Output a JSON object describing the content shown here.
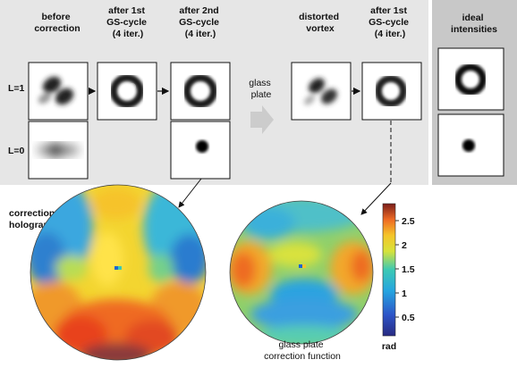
{
  "headers": {
    "before": [
      "before",
      "correction"
    ],
    "after1": [
      "after 1st",
      "GS-cycle",
      "(4 iter.)"
    ],
    "after2": [
      "after 2nd",
      "GS-cycle",
      "(4 iter.)"
    ],
    "distorted": [
      "distorted",
      "vortex"
    ],
    "after1b": [
      "after 1st",
      "GS-cycle",
      "(4 iter.)"
    ],
    "ideal": [
      "ideal",
      "intensities"
    ]
  },
  "row_labels": {
    "l1": "L=1",
    "l0": "L=0"
  },
  "glass_plate_label": [
    "glass",
    "plate"
  ],
  "correction_label": [
    "correction",
    "holograms"
  ],
  "glass_caption": [
    "glass plate",
    "correction function"
  ],
  "colorbar": {
    "ticks": [
      "2.5",
      "2",
      "1.5",
      "1",
      "0.5"
    ],
    "unit": "rad"
  },
  "colors": {
    "panel_bg": "#e6e6e6",
    "ideal_bg": "#c8c8c8",
    "arrow": "#cccccc"
  }
}
